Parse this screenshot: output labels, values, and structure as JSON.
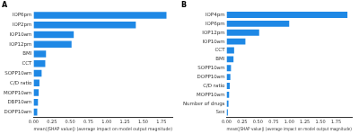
{
  "chart_data": [
    {
      "type": "bar",
      "title": "A",
      "orientation": "horizontal",
      "categories": [
        "IOP6pm",
        "IOP2pm",
        "IOP10am",
        "IOP12pm",
        "BMI",
        "CCT",
        "SOPP10am",
        "C/D ratio",
        "MOPP10am",
        "DBP10am",
        "DOPP10am"
      ],
      "values": [
        1.82,
        1.4,
        0.55,
        0.52,
        0.17,
        0.16,
        0.11,
        0.08,
        0.07,
        0.06,
        0.05
      ],
      "color": "#1e88e5",
      "x_label": "mean(|SHAP value|) (average impact on model output magnitude)",
      "xlim": [
        0,
        1.9
      ],
      "xticks": [
        {
          "value": 0,
          "label": "0.00"
        },
        {
          "value": 0.25,
          "label": "0.25"
        },
        {
          "value": 0.5,
          "label": "0.50"
        },
        {
          "value": 0.75,
          "label": "0.75"
        },
        {
          "value": 1,
          "label": "1.00"
        },
        {
          "value": 1.25,
          "label": "1.25"
        },
        {
          "value": 1.5,
          "label": "1.50"
        },
        {
          "value": 1.75,
          "label": "1.75"
        }
      ],
      "grid": false
    },
    {
      "type": "bar",
      "title": "B",
      "orientation": "horizontal",
      "categories": [
        "IOP4pm",
        "IOP6pm",
        "IOP12pm",
        "IOP10am",
        "CCT",
        "BMI",
        "SOPP10am",
        "DOPP10am",
        "C/D ratio",
        "MOPP10am",
        "Number of drugs",
        "Sex"
      ],
      "values": [
        1.93,
        1.0,
        0.52,
        0.3,
        0.12,
        0.11,
        0.07,
        0.06,
        0.05,
        0.04,
        0.03,
        0.02
      ],
      "color": "#1e88e5",
      "x_label": "mean(|SHAP value|) (average impact on model output magnitude)",
      "xlim": [
        0,
        2.0
      ],
      "xticks": [
        {
          "value": 0,
          "label": "0.00"
        },
        {
          "value": 0.25,
          "label": "0.25"
        },
        {
          "value": 0.5,
          "label": "0.50"
        },
        {
          "value": 0.75,
          "label": "0.75"
        },
        {
          "value": 1,
          "label": "1.00"
        },
        {
          "value": 1.25,
          "label": "1.25"
        },
        {
          "value": 1.5,
          "label": "1.50"
        },
        {
          "value": 1.75,
          "label": "1.75"
        }
      ],
      "grid": false
    }
  ]
}
